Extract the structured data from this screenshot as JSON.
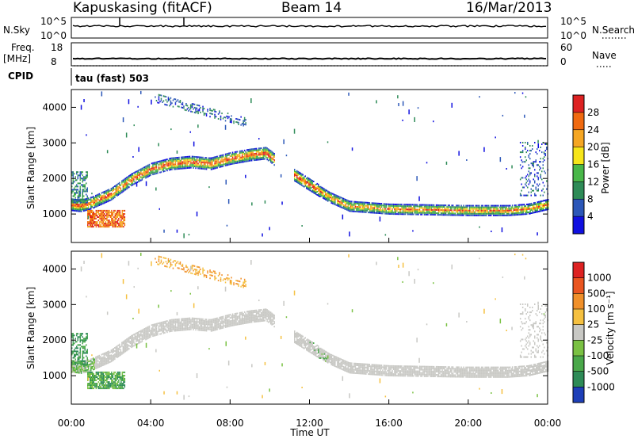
{
  "header": {
    "station": "Kapuskasing (fitACF)",
    "beam": "Beam 14",
    "date": "16/Mar/2013"
  },
  "strip_labels": {
    "nsky": "N.Sky",
    "nsearch": "N.Search",
    "freq": "Freq.",
    "freq_unit": "[MHz]",
    "nave": "Nave",
    "cpid": "CPID",
    "cpid_value": "tau (fast) 503",
    "noise_top": "10^5",
    "noise_bottom": "10^0",
    "freq_top": "18",
    "freq_bottom": "8",
    "nave_top": "60",
    "nave_bottom": "0"
  },
  "chart_data": [
    {
      "type": "heatmap",
      "panel": "power",
      "ylabel": "Slant Range [km]",
      "xlabel": "",
      "ylim": [
        200,
        4500
      ],
      "yticks": [
        "1000",
        "2000",
        "3000",
        "4000"
      ],
      "xlim_hours": [
        0,
        24
      ],
      "colorbar": {
        "label": "Power [dB]",
        "ticks": [
          "4",
          "8",
          "12",
          "16",
          "20",
          "24",
          "28"
        ],
        "colors": [
          "#1010e0",
          "#2c57b8",
          "#2e8b57",
          "#49b749",
          "#f6e51a",
          "#f5a623",
          "#f06a10",
          "#dd2222"
        ]
      },
      "series": [
        {
          "points": [
            [
              0.0,
              1250
            ],
            [
              0.5,
              1220
            ],
            [
              1.0,
              1300
            ],
            [
              2.0,
              1550
            ],
            [
              3.0,
              1950
            ],
            [
              4.0,
              2250
            ],
            [
              5.0,
              2400
            ],
            [
              6.0,
              2450
            ],
            [
              7.0,
              2400
            ],
            [
              8.0,
              2550
            ],
            [
              9.0,
              2650
            ],
            [
              9.8,
              2700
            ],
            [
              11.0,
              2150
            ],
            [
              12.0,
              1800
            ],
            [
              13.0,
              1450
            ],
            [
              14.0,
              1200
            ],
            [
              16.0,
              1120
            ],
            [
              18.0,
              1100
            ],
            [
              20.0,
              1080
            ],
            [
              22.0,
              1080
            ],
            [
              23.0,
              1120
            ],
            [
              24.0,
              1250
            ]
          ]
        }
      ]
    },
    {
      "type": "heatmap",
      "panel": "velocity",
      "ylabel": "Slant Range [km]",
      "xlabel": "Time UT",
      "ylim": [
        200,
        4500
      ],
      "yticks": [
        "1000",
        "2000",
        "3000",
        "4000"
      ],
      "xticks": [
        "00:00",
        "04:00",
        "08:00",
        "12:00",
        "16:00",
        "20:00",
        "00:00"
      ],
      "colorbar": {
        "label": "Velocity [m s⁻¹]",
        "ticks": [
          "1000",
          "500",
          "100",
          "25",
          "-25",
          "-100",
          "-500",
          "-1000"
        ],
        "colors": [
          "#1e3fb8",
          "#2e8b57",
          "#4aa84a",
          "#7ac143",
          "#c8c8c4",
          "#f5c040",
          "#f0902a",
          "#ea5520",
          "#dd2222"
        ]
      },
      "series": [
        {
          "points": [
            [
              0.0,
              1250
            ],
            [
              1.0,
              1300
            ],
            [
              2.0,
              1550
            ],
            [
              3.0,
              1950
            ],
            [
              4.0,
              2250
            ],
            [
              5.0,
              2400
            ],
            [
              6.0,
              2450
            ],
            [
              7.0,
              2400
            ],
            [
              8.0,
              2550
            ],
            [
              9.0,
              2650
            ],
            [
              9.8,
              2700
            ],
            [
              11.0,
              2150
            ],
            [
              12.0,
              1800
            ],
            [
              13.0,
              1450
            ],
            [
              14.0,
              1200
            ],
            [
              16.0,
              1120
            ],
            [
              18.0,
              1100
            ],
            [
              20.0,
              1080
            ],
            [
              22.0,
              1080
            ],
            [
              23.0,
              1120
            ],
            [
              24.0,
              1250
            ]
          ]
        }
      ]
    }
  ]
}
